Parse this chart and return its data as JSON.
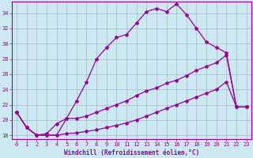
{
  "xlabel": "Windchill (Refroidissement éolien,°C)",
  "bg_color": "#cce8f0",
  "line_color": "#990099",
  "grid_color": "#aab8cc",
  "ylim": [
    17.5,
    35.5
  ],
  "xlim": [
    -0.5,
    23.5
  ],
  "yticks": [
    18,
    20,
    22,
    24,
    26,
    28,
    30,
    32,
    34
  ],
  "xticks": [
    0,
    1,
    2,
    3,
    4,
    5,
    6,
    7,
    8,
    9,
    10,
    11,
    12,
    13,
    14,
    15,
    16,
    17,
    18,
    19,
    20,
    21,
    22,
    23
  ],
  "s1_x": [
    0,
    1,
    2,
    3,
    4,
    5,
    6,
    7,
    8,
    9,
    10,
    11,
    12,
    13,
    14,
    15,
    16,
    17,
    18,
    19,
    20,
    21,
    22,
    23
  ],
  "s1_y": [
    21.0,
    19.0,
    18.0,
    18.0,
    18.0,
    20.2,
    22.5,
    25.0,
    28.0,
    29.5,
    30.8,
    31.2,
    32.7,
    34.2,
    34.6,
    34.2,
    35.2,
    33.8,
    32.0,
    30.2,
    29.5,
    28.8,
    21.7,
    21.7
  ],
  "s2_x": [
    0,
    1,
    2,
    3,
    4,
    5,
    6,
    7,
    8,
    9,
    10,
    11,
    12,
    13,
    14,
    15,
    16,
    17,
    18,
    19,
    20,
    21,
    22,
    23
  ],
  "s2_y": [
    21.0,
    19.0,
    18.0,
    18.2,
    19.5,
    20.2,
    20.2,
    20.5,
    21.0,
    21.5,
    22.0,
    22.5,
    23.2,
    23.8,
    24.2,
    24.8,
    25.2,
    25.8,
    26.5,
    27.0,
    27.5,
    28.5,
    21.7,
    21.7
  ],
  "s3_x": [
    0,
    1,
    2,
    3,
    4,
    5,
    6,
    7,
    8,
    9,
    10,
    11,
    12,
    13,
    14,
    15,
    16,
    17,
    18,
    19,
    20,
    21,
    22,
    23
  ],
  "s3_y": [
    21.0,
    19.0,
    18.0,
    18.0,
    18.0,
    18.2,
    18.3,
    18.5,
    18.7,
    19.0,
    19.3,
    19.6,
    20.0,
    20.5,
    21.0,
    21.5,
    22.0,
    22.5,
    23.0,
    23.5,
    24.0,
    25.0,
    21.7,
    21.7
  ],
  "lw": 0.9,
  "ms": 3.0,
  "tick_fontsize": 5.0,
  "xlabel_fontsize": 5.5
}
